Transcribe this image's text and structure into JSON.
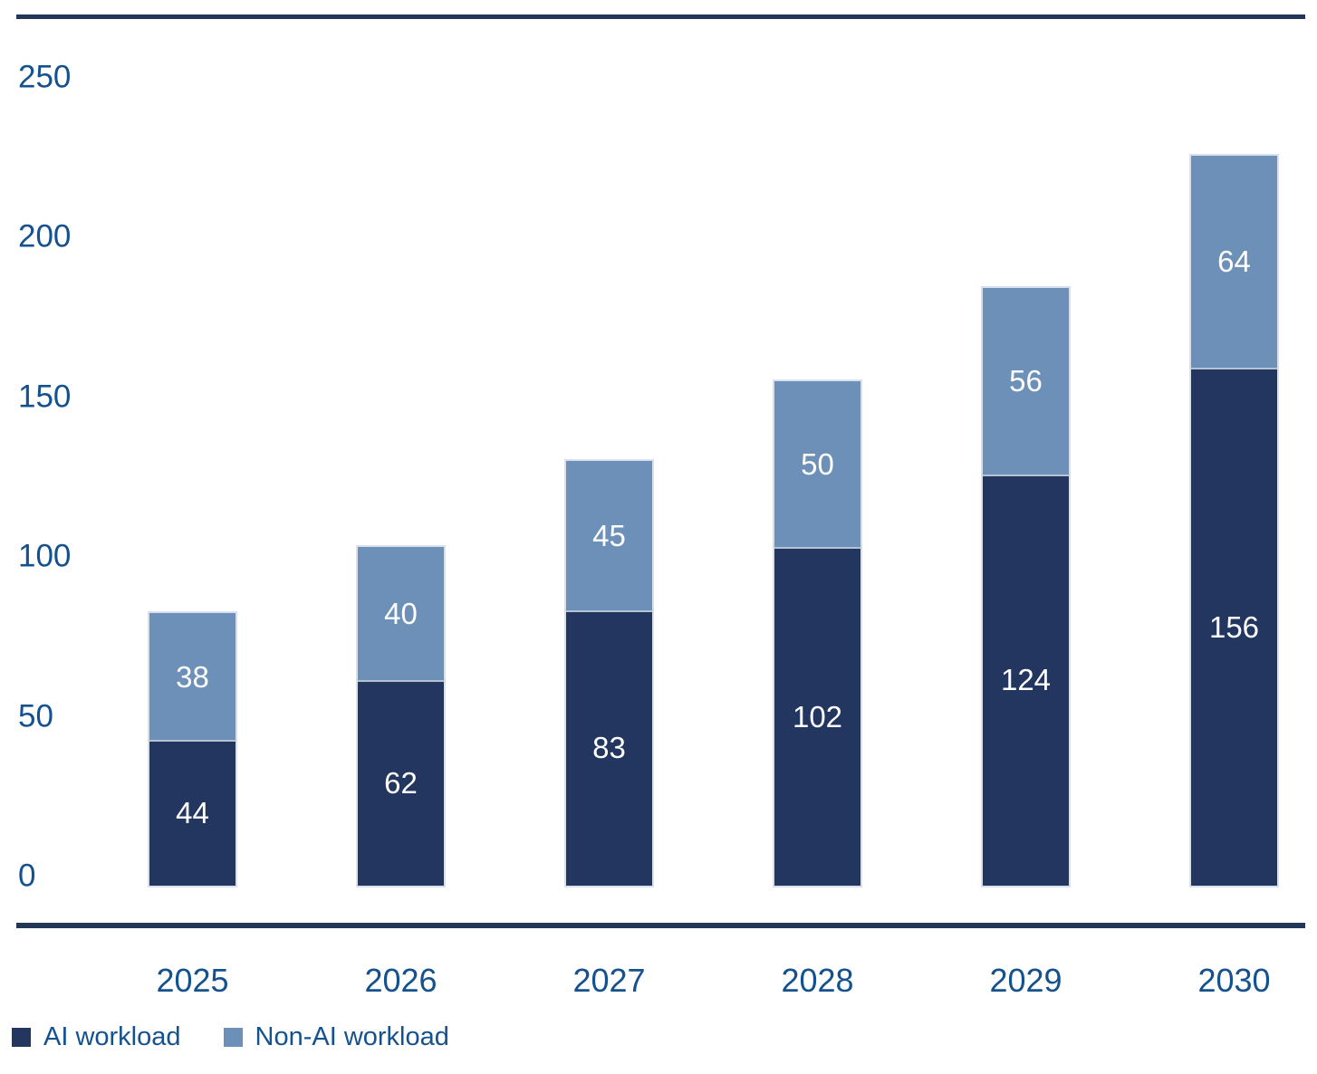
{
  "chart_data": {
    "type": "bar",
    "stacked": true,
    "title": "",
    "xlabel": "",
    "ylabel": "",
    "categories": [
      "2025",
      "2026",
      "2027",
      "2028",
      "2029",
      "2030"
    ],
    "series": [
      {
        "name": "AI workload",
        "color": "#223660",
        "values": [
          44,
          62,
          83,
          102,
          124,
          156
        ]
      },
      {
        "name": "Non-AI workload",
        "color": "#6c90b8",
        "values": [
          38,
          40,
          45,
          50,
          56,
          64
        ]
      }
    ],
    "totals": [
      82,
      102,
      128,
      152,
      180,
      220
    ],
    "ylim": [
      0,
      250
    ],
    "yticks": [
      0,
      50,
      100,
      150,
      200,
      250
    ],
    "grid": false,
    "value_labels": "inside-center",
    "legend_position": "bottom-left"
  },
  "colors": {
    "ai_workload": "#223660",
    "non_ai_workload": "#6c90b8",
    "axis_text": "#14518f",
    "border_rule": "#223659",
    "bar_value_text": "#ffffff",
    "bar_edge": "rgba(208,218,233,0.85)",
    "background": "#ffffff"
  },
  "legend": {
    "items": [
      {
        "label": "AI workload",
        "color": "#223660"
      },
      {
        "label": "Non-AI workload",
        "color": "#6c90b8"
      }
    ]
  }
}
